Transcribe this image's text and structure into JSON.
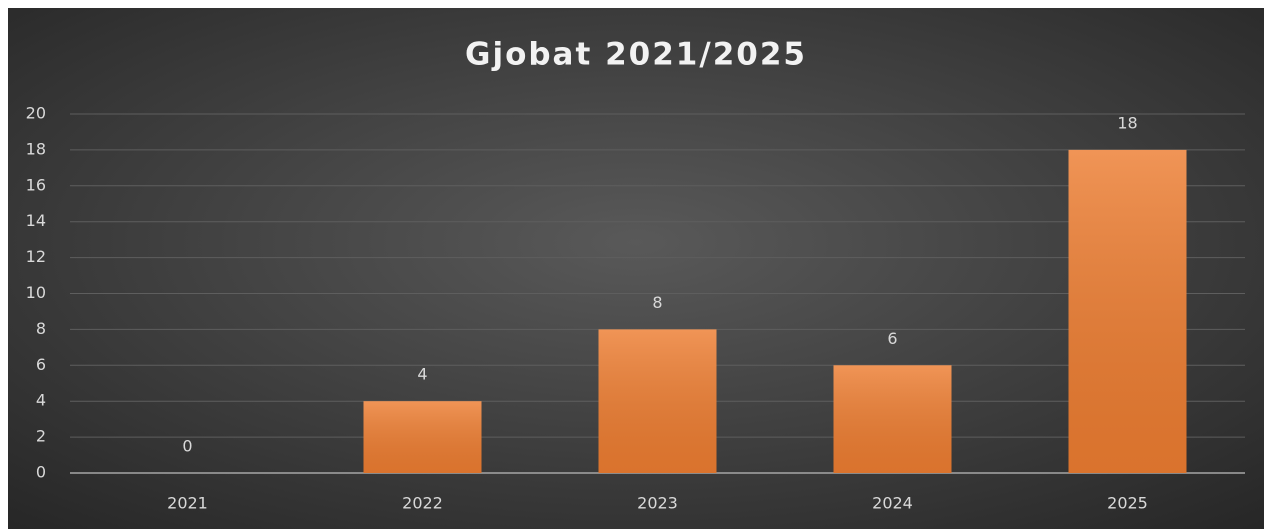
{
  "chart_data": {
    "type": "bar",
    "title": "Gjobat 2021/2025",
    "categories": [
      "2021",
      "2022",
      "2023",
      "2024",
      "2025"
    ],
    "values": [
      0,
      4,
      8,
      6,
      18
    ],
    "color": "#ed7d31",
    "ylim": [
      0,
      20
    ],
    "yticks": [
      0,
      2,
      4,
      6,
      8,
      10,
      12,
      14,
      16,
      18,
      20
    ],
    "grid": true
  }
}
